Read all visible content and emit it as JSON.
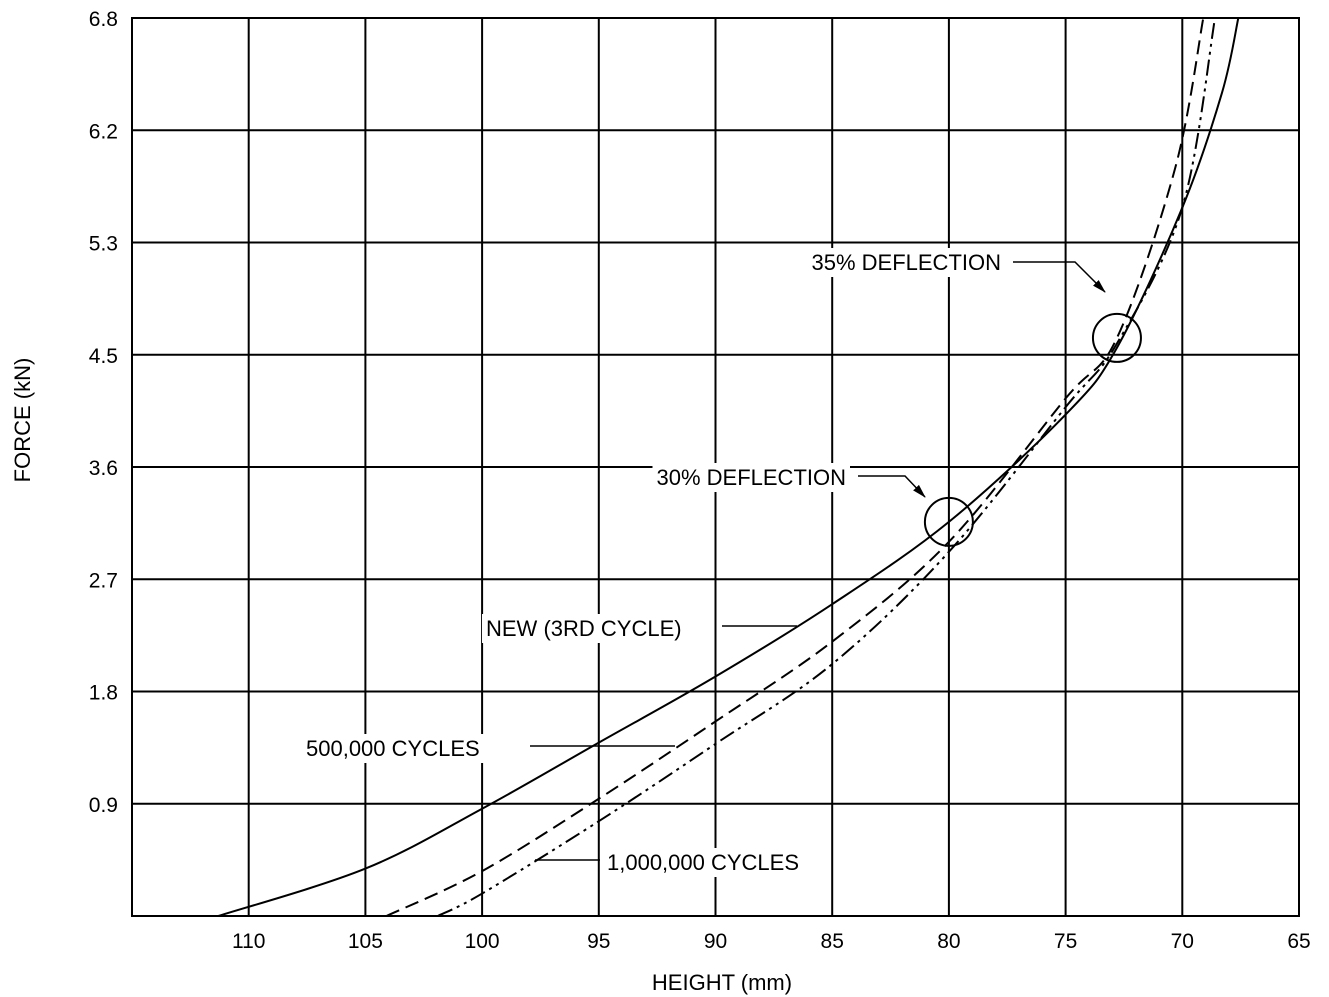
{
  "chart_data": {
    "type": "line",
    "xlabel": "HEIGHT (mm)",
    "ylabel": "FORCE (kN)",
    "xlim": [
      115,
      65
    ],
    "ylim": [
      0,
      6.8
    ],
    "x_reversed": true,
    "grid": true,
    "x_ticks": [
      110,
      105,
      100,
      95,
      90,
      85,
      80,
      75,
      70,
      65
    ],
    "y_ticks": [
      0.9,
      1.8,
      2.7,
      3.6,
      4.5,
      5.3,
      6.2,
      6.8
    ],
    "series": [
      {
        "name": "NEW (3RD CYCLE)",
        "style": "solid",
        "x": [
          111.3,
          105,
          100,
          95,
          90,
          85,
          80,
          75,
          72.8,
          70,
          68.3,
          67.6
        ],
        "y": [
          0,
          0.38,
          0.86,
          1.39,
          1.92,
          2.5,
          3.16,
          4.02,
          4.55,
          5.58,
          6.4,
          6.8
        ]
      },
      {
        "name": "500,000 CYCLES",
        "style": "dashed",
        "x": [
          104.1,
          100,
          95,
          90,
          85,
          80,
          75,
          72.8,
          70.3,
          69.1
        ],
        "y": [
          0,
          0.36,
          0.94,
          1.56,
          2.2,
          3.0,
          4.15,
          4.62,
          5.9,
          6.8
        ]
      },
      {
        "name": "1,000,000 CYCLES",
        "style": "dashdotdot",
        "x": [
          101.9,
          100,
          95,
          90,
          85,
          80,
          75,
          72.8,
          70,
          68.6
        ],
        "y": [
          0,
          0.18,
          0.76,
          1.38,
          2.02,
          2.92,
          4.08,
          4.58,
          5.58,
          6.8
        ]
      }
    ],
    "annotations": [
      {
        "text": "35% DEFLECTION",
        "x": 72.8,
        "y": 4.62
      },
      {
        "text": "30% DEFLECTION",
        "x": 80,
        "y": 3.16
      }
    ]
  }
}
